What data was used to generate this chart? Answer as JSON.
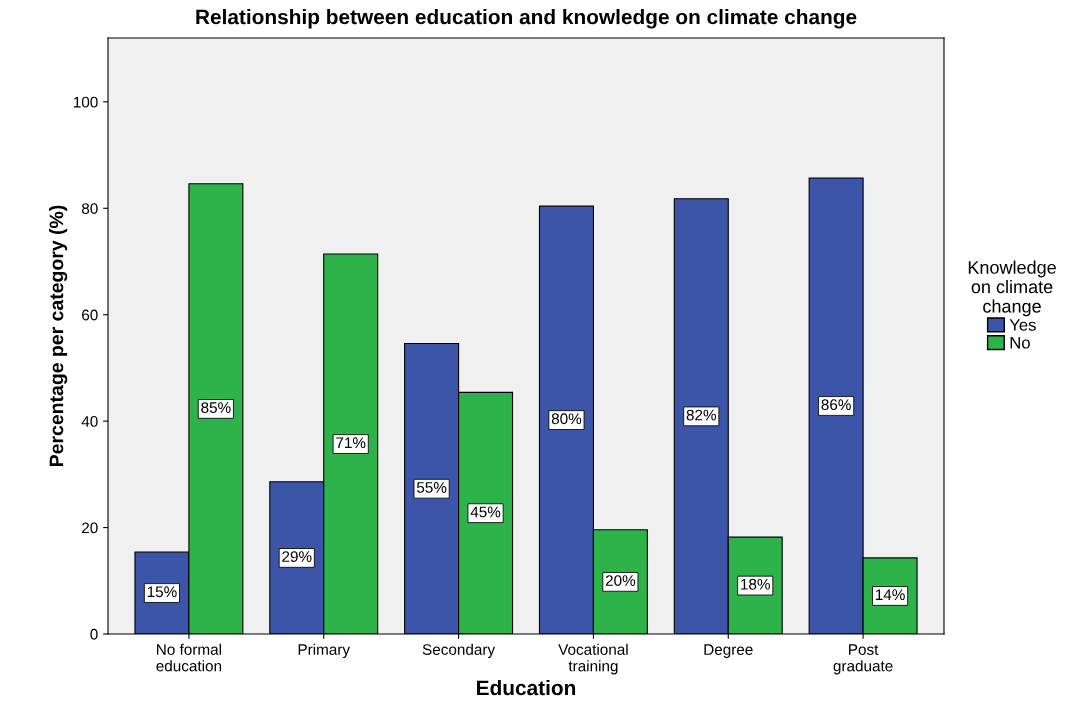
{
  "chart_data": {
    "type": "bar",
    "title": "Relationship between education and knowledge on climate change",
    "xlabel": "Education",
    "ylabel": "Percentage per category (%)",
    "legend_title": "Knowledge\non climate\nchange",
    "categories": [
      "No formal\neducation",
      "Primary",
      "Secondary",
      "Vocational\ntraining",
      "Degree",
      "Post\ngraduate"
    ],
    "series": [
      {
        "name": "Yes",
        "color": "#3d55a8",
        "values": [
          15.4,
          28.6,
          54.6,
          80.4,
          81.8,
          85.7
        ],
        "value_labels": [
          "15%",
          "29%",
          "55%",
          "80%",
          "82%",
          "86%"
        ]
      },
      {
        "name": "No",
        "color": "#2eb34b",
        "values": [
          84.6,
          71.4,
          45.4,
          19.6,
          18.2,
          14.3
        ],
        "value_labels": [
          "85%",
          "71%",
          "45%",
          "20%",
          "18%",
          "14%"
        ]
      }
    ],
    "ylim": [
      0,
      112
    ],
    "yticks": [
      0,
      20,
      40,
      60,
      80,
      100
    ],
    "grid": false,
    "legend": "right"
  }
}
